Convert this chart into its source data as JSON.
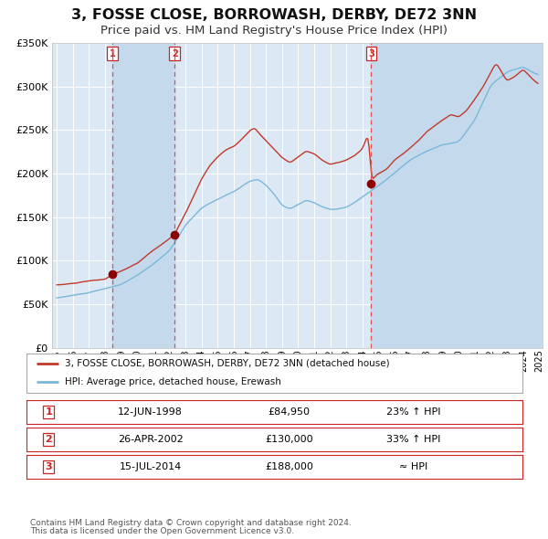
{
  "title": "3, FOSSE CLOSE, BORROWASH, DERBY, DE72 3NN",
  "subtitle": "Price paid vs. HM Land Registry's House Price Index (HPI)",
  "title_fontsize": 11.5,
  "subtitle_fontsize": 9.5,
  "background_color": "#ffffff",
  "plot_bg_color": "#dce8f3",
  "grid_color": "#ffffff",
  "shade_color": "#c5d9ed",
  "x_start_year": 1995,
  "x_end_year": 2025,
  "y_min": 0,
  "y_max": 350000,
  "y_ticks": [
    0,
    50000,
    100000,
    150000,
    200000,
    250000,
    300000,
    350000
  ],
  "purchases": [
    {
      "date_year": 1998.45,
      "price": 84950,
      "label": "1"
    },
    {
      "date_year": 2002.32,
      "price": 130000,
      "label": "2"
    },
    {
      "date_year": 2014.54,
      "price": 188000,
      "label": "3"
    }
  ],
  "hpi_line_color": "#7ab8d9",
  "price_line_color": "#c0392b",
  "dot_color": "#8b0000",
  "dashed_line_color": "#e05050",
  "legend_entries": [
    "3, FOSSE CLOSE, BORROWASH, DERBY, DE72 3NN (detached house)",
    "HPI: Average price, detached house, Erewash"
  ],
  "table_rows": [
    {
      "num": "1",
      "date": "12-JUN-1998",
      "price": "£84,950",
      "vs_hpi": "23% ↑ HPI"
    },
    {
      "num": "2",
      "date": "26-APR-2002",
      "price": "£130,000",
      "vs_hpi": "33% ↑ HPI"
    },
    {
      "num": "3",
      "date": "15-JUL-2014",
      "price": "£188,000",
      "vs_hpi": "≈ HPI"
    }
  ],
  "footnote1": "Contains HM Land Registry data © Crown copyright and database right 2024.",
  "footnote2": "This data is licensed under the Open Government Licence v3.0."
}
